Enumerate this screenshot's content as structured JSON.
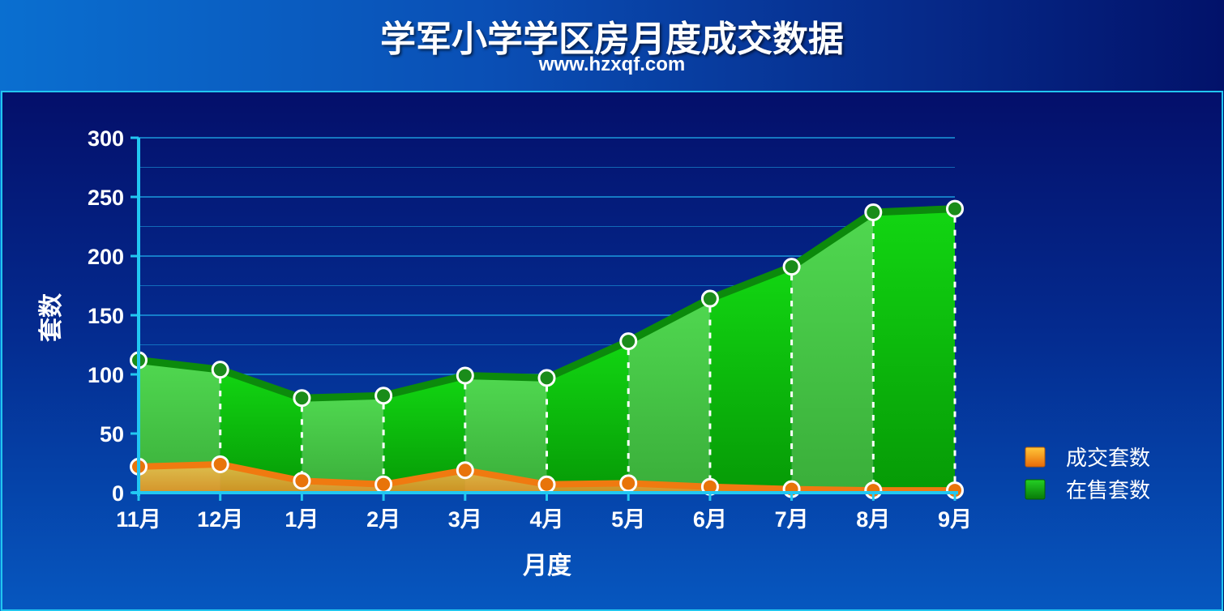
{
  "header": {
    "title": "学军小学学区房月度成交数据",
    "subtitle": "www.hzxqf.com"
  },
  "colors": {
    "grid": "#1ea8e8",
    "axis": "#22c8f2",
    "sale_line": "#0c8a0c",
    "sale_fill_light": "#3fcc3f",
    "sale_fill_dark": "#08a808",
    "deal_line": "#f07a10",
    "deal_fill": "#f6b040",
    "deal_marker": "#e8740a",
    "sale_marker": "#1a8c1a"
  },
  "chart_data": {
    "type": "area",
    "categories": [
      "11月",
      "12月",
      "1月",
      "2月",
      "3月",
      "4月",
      "5月",
      "6月",
      "7月",
      "8月",
      "9月"
    ],
    "series": [
      {
        "name": "成交套数",
        "values": [
          22,
          24,
          10,
          7,
          19,
          7,
          8,
          5,
          3,
          2,
          2
        ]
      },
      {
        "name": "在售套数",
        "values": [
          112,
          104,
          80,
          82,
          99,
          97,
          128,
          164,
          191,
          237,
          240
        ]
      }
    ],
    "xlabel": "月度",
    "ylabel": "套数",
    "ylim": [
      0,
      300
    ],
    "yticks": [
      "0",
      "50",
      "100",
      "150",
      "200",
      "250",
      "300"
    ],
    "grid": true,
    "legend": "right"
  }
}
